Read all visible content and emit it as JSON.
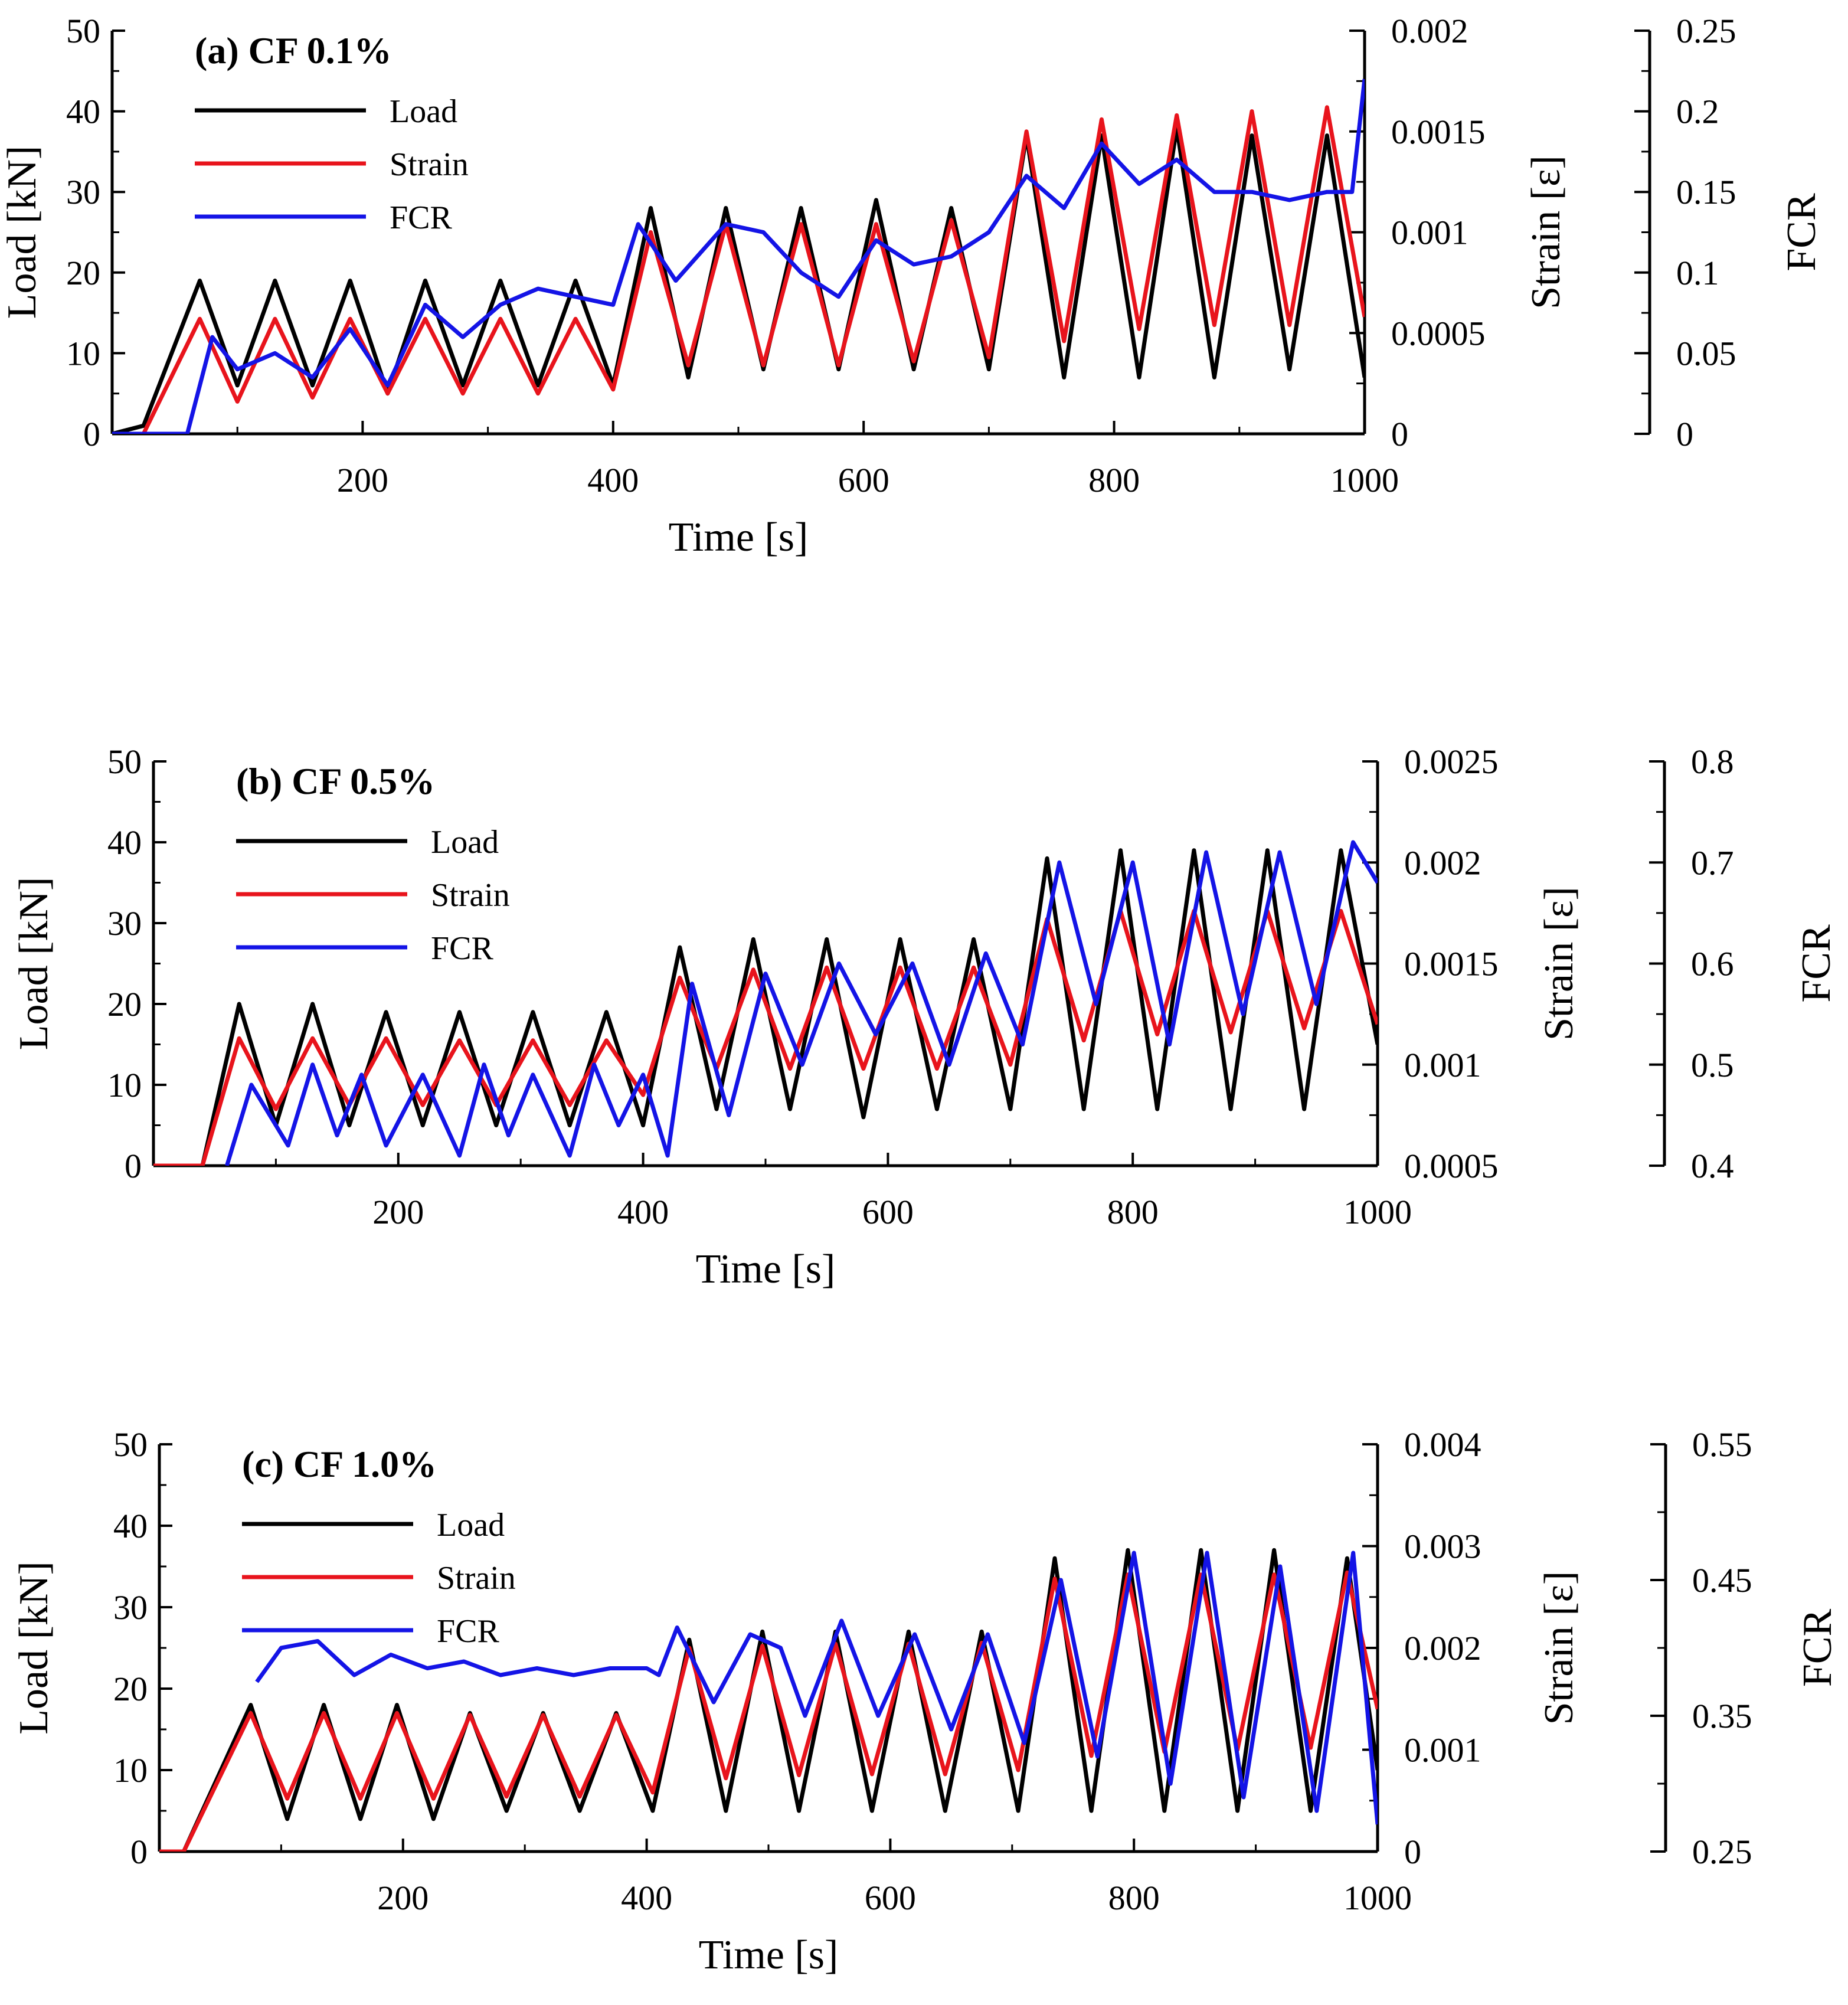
{
  "figure": {
    "description_free": true
  },
  "chart_data": [
    {
      "type": "line",
      "panel_label": "(a) CF 0.1%",
      "xlabel": "Time [s]",
      "xlim": [
        0,
        1000
      ],
      "xticks": [
        200,
        400,
        600,
        800,
        1000
      ],
      "left_axis": {
        "label": "Load [kN]",
        "lim": [
          0,
          50
        ],
        "ticks": [
          "0",
          "10",
          "20",
          "30",
          "40",
          "50"
        ]
      },
      "strain_axis": {
        "label": "Strain [ε]",
        "lim": [
          0,
          0.002
        ],
        "ticks": [
          "0",
          "0.0005",
          "0.001",
          "0.0015",
          "0.002"
        ]
      },
      "fcr_axis": {
        "label": "FCR",
        "lim": [
          0,
          0.25
        ],
        "ticks": [
          "0",
          "0.05",
          "0.1",
          "0.15",
          "0.2",
          "0.25"
        ]
      },
      "series": [
        {
          "name": "Load",
          "color": "#000000",
          "axis": "load",
          "x": [
            0,
            25,
            70,
            100,
            130,
            160,
            190,
            220,
            250,
            280,
            310,
            340,
            370,
            400,
            430,
            460,
            490,
            520,
            550,
            580,
            610,
            640,
            670,
            700,
            730,
            760,
            790,
            820,
            850,
            880,
            910,
            940,
            970,
            1000
          ],
          "values": [
            0,
            1,
            19,
            6,
            19,
            6,
            19,
            5,
            19,
            6,
            19,
            6,
            19,
            6,
            28,
            7,
            28,
            8,
            28,
            8,
            29,
            8,
            28,
            8,
            37,
            7,
            37,
            7,
            38,
            7,
            37,
            8,
            37,
            7
          ]
        },
        {
          "name": "Strain",
          "color": "#e8141c",
          "axis": "strain",
          "x": [
            0,
            25,
            70,
            100,
            130,
            160,
            190,
            220,
            250,
            280,
            310,
            340,
            370,
            400,
            430,
            460,
            490,
            520,
            550,
            580,
            610,
            640,
            670,
            700,
            730,
            760,
            790,
            820,
            850,
            880,
            910,
            940,
            970,
            1000
          ],
          "values": [
            0,
            0,
            0.00057,
            0.00016,
            0.00057,
            0.00018,
            0.00057,
            0.0002,
            0.00057,
            0.0002,
            0.00057,
            0.0002,
            0.00057,
            0.00022,
            0.001,
            0.00034,
            0.00104,
            0.00034,
            0.00104,
            0.00034,
            0.00104,
            0.00036,
            0.00106,
            0.00038,
            0.0015,
            0.00046,
            0.00156,
            0.00052,
            0.00158,
            0.00054,
            0.0016,
            0.00054,
            0.00162,
            0.00058
          ]
        },
        {
          "name": "FCR",
          "color": "#1414e6",
          "axis": "fcr",
          "x": [
            0,
            60,
            80,
            100,
            130,
            160,
            190,
            220,
            250,
            280,
            310,
            340,
            370,
            400,
            420,
            450,
            490,
            520,
            550,
            580,
            610,
            640,
            670,
            700,
            730,
            760,
            790,
            820,
            850,
            880,
            910,
            940,
            970,
            990,
            1000
          ],
          "values": [
            0,
            0,
            0.06,
            0.04,
            0.05,
            0.035,
            0.065,
            0.03,
            0.08,
            0.06,
            0.08,
            0.09,
            0.085,
            0.08,
            0.13,
            0.095,
            0.13,
            0.125,
            0.1,
            0.085,
            0.12,
            0.105,
            0.11,
            0.125,
            0.16,
            0.14,
            0.18,
            0.155,
            0.17,
            0.15,
            0.15,
            0.145,
            0.15,
            0.15,
            0.22
          ]
        }
      ]
    },
    {
      "type": "line",
      "panel_label": "(b) CF 0.5%",
      "xlabel": "Time [s]",
      "xlim": [
        0,
        1000
      ],
      "xticks": [
        200,
        400,
        600,
        800,
        1000
      ],
      "left_axis": {
        "label": "Load [kN]",
        "lim": [
          0,
          50
        ],
        "ticks": [
          "0",
          "10",
          "20",
          "30",
          "40",
          "50"
        ]
      },
      "strain_axis": {
        "label": "Strain [ε]",
        "lim": [
          0.0005,
          0.0025
        ],
        "ticks": [
          "0.0005",
          "0.001",
          "0.0015",
          "0.002",
          "0.0025"
        ]
      },
      "fcr_axis": {
        "label": "FCR",
        "lim": [
          0.4,
          0.8
        ],
        "ticks": [
          "0.4",
          "0.5",
          "0.6",
          "0.7",
          "0.8"
        ]
      },
      "series": [
        {
          "name": "Load",
          "color": "#000000",
          "axis": "load",
          "x": [
            0,
            40,
            70,
            100,
            130,
            160,
            190,
            220,
            250,
            280,
            310,
            340,
            370,
            400,
            430,
            460,
            490,
            520,
            550,
            580,
            610,
            640,
            670,
            700,
            730,
            760,
            790,
            820,
            850,
            880,
            910,
            940,
            970,
            1000
          ],
          "values": [
            0,
            0,
            20,
            5,
            20,
            5,
            19,
            5,
            19,
            5,
            19,
            5,
            19,
            5,
            27,
            7,
            28,
            7,
            28,
            6,
            28,
            7,
            28,
            7,
            38,
            7,
            39,
            7,
            39,
            7,
            39,
            7,
            39,
            15
          ]
        },
        {
          "name": "Strain",
          "color": "#e8141c",
          "axis": "strain",
          "x": [
            0,
            40,
            70,
            100,
            130,
            160,
            190,
            220,
            250,
            280,
            310,
            340,
            370,
            400,
            430,
            460,
            490,
            520,
            550,
            580,
            610,
            640,
            670,
            700,
            730,
            760,
            790,
            820,
            850,
            880,
            910,
            940,
            970,
            1000
          ],
          "values": [
            0.0005,
            0.0005,
            0.00113,
            0.00078,
            0.00113,
            0.0008,
            0.00113,
            0.0008,
            0.00112,
            0.0008,
            0.00112,
            0.0008,
            0.00112,
            0.00085,
            0.00143,
            0.00098,
            0.00147,
            0.00098,
            0.00148,
            0.00098,
            0.00148,
            0.00098,
            0.00148,
            0.001,
            0.00172,
            0.00112,
            0.00176,
            0.00115,
            0.00176,
            0.00116,
            0.00176,
            0.00118,
            0.00176,
            0.0012
          ]
        },
        {
          "name": "FCR",
          "color": "#1414e6",
          "axis": "fcr",
          "x": [
            60,
            80,
            110,
            130,
            150,
            170,
            190,
            220,
            250,
            270,
            290,
            310,
            340,
            360,
            380,
            400,
            420,
            440,
            470,
            500,
            530,
            560,
            590,
            620,
            650,
            680,
            710,
            740,
            770,
            800,
            830,
            860,
            890,
            920,
            950,
            980,
            1000
          ],
          "values": [
            0.4,
            0.48,
            0.42,
            0.5,
            0.43,
            0.49,
            0.42,
            0.49,
            0.41,
            0.5,
            0.43,
            0.49,
            0.41,
            0.5,
            0.44,
            0.49,
            0.41,
            0.58,
            0.45,
            0.59,
            0.5,
            0.6,
            0.53,
            0.6,
            0.5,
            0.61,
            0.52,
            0.7,
            0.56,
            0.7,
            0.52,
            0.71,
            0.55,
            0.71,
            0.56,
            0.72,
            0.68
          ]
        }
      ]
    },
    {
      "type": "line",
      "panel_label": "(c) CF 1.0%",
      "xlabel": "Time [s]",
      "xlim": [
        0,
        1000
      ],
      "xticks": [
        200,
        400,
        600,
        800,
        1000
      ],
      "left_axis": {
        "label": "Load [kN]",
        "lim": [
          0,
          50
        ],
        "ticks": [
          "0",
          "10",
          "20",
          "30",
          "40",
          "50"
        ]
      },
      "strain_axis": {
        "label": "Strain [ε]",
        "lim": [
          0,
          0.004
        ],
        "ticks": [
          "0",
          "0.001",
          "0.002",
          "0.003",
          "0.004"
        ]
      },
      "fcr_axis": {
        "label": "FCR",
        "lim": [
          0.25,
          0.55
        ],
        "ticks": [
          "0.25",
          "0.35",
          "0.45",
          "0.55"
        ]
      },
      "series": [
        {
          "name": "Load",
          "color": "#000000",
          "axis": "load",
          "x": [
            0,
            20,
            75,
            105,
            135,
            165,
            195,
            225,
            255,
            285,
            315,
            345,
            375,
            405,
            435,
            465,
            495,
            525,
            555,
            585,
            615,
            645,
            675,
            705,
            735,
            765,
            795,
            825,
            855,
            885,
            915,
            945,
            975,
            1000
          ],
          "values": [
            0,
            0,
            18,
            4,
            18,
            4,
            18,
            4,
            17,
            5,
            17,
            5,
            17,
            5,
            26,
            5,
            27,
            5,
            27,
            5,
            27,
            5,
            27,
            5,
            36,
            5,
            37,
            5,
            37,
            5,
            37,
            5,
            36,
            10
          ]
        },
        {
          "name": "Strain",
          "color": "#e8141c",
          "axis": "strain",
          "x": [
            0,
            20,
            75,
            105,
            135,
            165,
            195,
            225,
            255,
            285,
            315,
            345,
            375,
            405,
            435,
            465,
            495,
            525,
            555,
            585,
            615,
            645,
            675,
            705,
            735,
            765,
            795,
            825,
            855,
            885,
            915,
            945,
            975,
            1000
          ],
          "values": [
            0,
            0,
            0.00136,
            0.00052,
            0.00136,
            0.00052,
            0.00136,
            0.00052,
            0.00134,
            0.00054,
            0.00134,
            0.00054,
            0.00134,
            0.00058,
            0.002,
            0.00072,
            0.00202,
            0.00075,
            0.00204,
            0.00076,
            0.00204,
            0.00076,
            0.00205,
            0.0008,
            0.00268,
            0.00094,
            0.00272,
            0.00098,
            0.00272,
            0.001,
            0.00272,
            0.00102,
            0.00274,
            0.0014
          ]
        },
        {
          "name": "FCR",
          "color": "#1414e6",
          "axis": "fcr",
          "x": [
            80,
            100,
            130,
            160,
            190,
            220,
            250,
            280,
            310,
            340,
            370,
            400,
            410,
            425,
            455,
            485,
            510,
            530,
            560,
            590,
            620,
            650,
            680,
            710,
            740,
            770,
            800,
            830,
            860,
            890,
            920,
            950,
            980,
            1000
          ],
          "values": [
            0.375,
            0.4,
            0.405,
            0.38,
            0.395,
            0.385,
            0.39,
            0.38,
            0.385,
            0.38,
            0.385,
            0.385,
            0.38,
            0.415,
            0.36,
            0.41,
            0.4,
            0.35,
            0.42,
            0.35,
            0.41,
            0.34,
            0.41,
            0.33,
            0.45,
            0.32,
            0.47,
            0.3,
            0.47,
            0.29,
            0.46,
            0.28,
            0.47,
            0.27
          ]
        }
      ]
    }
  ]
}
